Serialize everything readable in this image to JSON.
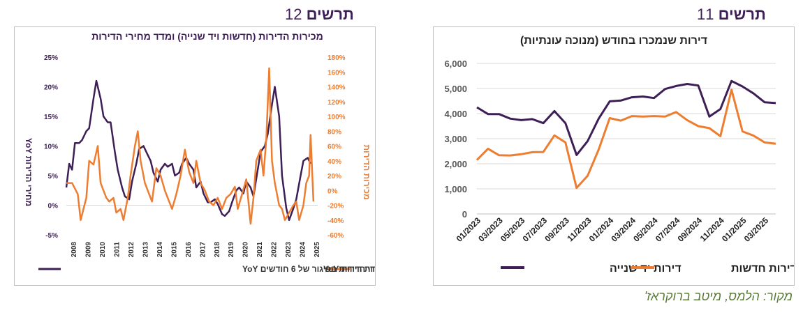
{
  "fig11_heading": {
    "word": "תרשים",
    "number": "11"
  },
  "fig12_heading": {
    "word": "תרשים",
    "number": "12"
  },
  "source": "מקור: הלמס, מיטב ברוקראז'",
  "colors": {
    "purple": "#3d1f56",
    "orange": "#ed7d31",
    "grid": "#d9d9d9",
    "axis_text": "#595959"
  },
  "chart_data": [
    {
      "type": "line",
      "title": "דירות שנמכרו בחודש (מנוכה עונתיות)",
      "x": [
        "01/2023",
        "02/2023",
        "03/2023",
        "04/2023",
        "05/2023",
        "06/2023",
        "07/2023",
        "08/2023",
        "09/2023",
        "10/2023",
        "11/2023",
        "12/2023",
        "01/2024",
        "02/2024",
        "03/2024",
        "04/2024",
        "05/2024",
        "06/2024",
        "07/2024",
        "08/2024",
        "09/2024",
        "10/2024",
        "11/2024",
        "12/2024",
        "01/2025",
        "02/2025",
        "03/2025",
        "04/2025"
      ],
      "x_tick_labels": [
        "01/2023",
        "03/2023",
        "05/2023",
        "07/2023",
        "09/2023",
        "11/2023",
        "01/2024",
        "03/2024",
        "05/2024",
        "07/2024",
        "09/2024",
        "11/2024",
        "01/2025",
        "03/2025"
      ],
      "ylim": [
        0,
        6000
      ],
      "y_ticks": [
        "0",
        "1,000",
        "2,000",
        "3,000",
        "4,000",
        "5,000",
        "6,000"
      ],
      "grid": "horizontal",
      "legend_position": "bottom",
      "series": [
        {
          "name": "דירות יד שנייה",
          "color": "#3d1f56",
          "values": [
            4250,
            3980,
            3980,
            3800,
            3740,
            3780,
            3620,
            4100,
            3620,
            2350,
            2900,
            3800,
            4490,
            4520,
            4650,
            4680,
            4620,
            4980,
            5100,
            5180,
            5120,
            3880,
            4180,
            5300,
            5080,
            4800,
            4450,
            4420
          ]
        },
        {
          "name": "דירות חדשות",
          "color": "#ed7d31",
          "values": [
            2150,
            2600,
            2340,
            2330,
            2380,
            2460,
            2470,
            3130,
            2850,
            1040,
            1520,
            2570,
            3820,
            3720,
            3900,
            3880,
            3900,
            3880,
            4060,
            3740,
            3500,
            3420,
            3100,
            4950,
            3290,
            3120,
            2850,
            2800
          ]
        }
      ]
    },
    {
      "type": "line",
      "title": "מכירות הדירות (חדשות ויד שנייה) ומדד מחירי הדירות",
      "x_tick_labels": [
        "2008",
        "2009",
        "2010",
        "2011",
        "2012",
        "2013",
        "2014",
        "2015",
        "2016",
        "2017",
        "2018",
        "2019",
        "2020",
        "2021",
        "2022",
        "2023",
        "2024",
        "2025"
      ],
      "y_left": {
        "label": "מחירי הדירות YoY",
        "ylim": [
          -5,
          25
        ],
        "ticks": [
          "-5%",
          "0%",
          "5%",
          "10%",
          "15%",
          "20%",
          "25%"
        ]
      },
      "y_right": {
        "label": "מכירות הדירות",
        "ylim": [
          -60,
          180
        ],
        "ticks": [
          "-60%",
          "-40%",
          "-20%",
          "0%",
          "20%",
          "40%",
          "60%",
          "80%",
          "100%",
          "120%",
          "140%",
          "160%",
          "180%"
        ]
      },
      "legend_position": "bottom",
      "series": [
        {
          "name": "מחירי הדירות בפיגור של 6 חודשים YoY",
          "axis": "left",
          "color": "#3d1f56",
          "x": [
            2008.0,
            2008.2,
            2008.4,
            2008.6,
            2008.9,
            2009.1,
            2009.4,
            2009.6,
            2009.9,
            2010.1,
            2010.4,
            2010.6,
            2010.9,
            2011.1,
            2011.4,
            2011.6,
            2011.9,
            2012.1,
            2012.4,
            2012.6,
            2012.9,
            2013.1,
            2013.4,
            2013.6,
            2013.9,
            2014.1,
            2014.4,
            2014.6,
            2014.9,
            2015.1,
            2015.4,
            2015.6,
            2015.9,
            2016.1,
            2016.4,
            2016.6,
            2016.9,
            2017.1,
            2017.4,
            2017.6,
            2017.9,
            2018.1,
            2018.4,
            2018.6,
            2018.9,
            2019.1,
            2019.4,
            2019.6,
            2019.9,
            2020.1,
            2020.4,
            2020.6,
            2020.9,
            2021.1,
            2021.4,
            2021.6,
            2021.9,
            2022.1,
            2022.4,
            2022.6,
            2022.9,
            2023.1,
            2023.4,
            2023.6,
            2023.9,
            2024.1,
            2024.4,
            2024.6,
            2024.9,
            2025.1
          ],
          "values": [
            3,
            7,
            6,
            10.5,
            10.5,
            11,
            12.5,
            13,
            18,
            21,
            18,
            15,
            14,
            14,
            9,
            6,
            3,
            1.5,
            1,
            4,
            7,
            9.5,
            10,
            9,
            7.5,
            5.5,
            4,
            6,
            7,
            6.5,
            7,
            5,
            5.5,
            7,
            8,
            7,
            6,
            3,
            4,
            2,
            0.5,
            0.5,
            1,
            0.2,
            -1.5,
            -1.8,
            -1,
            0.5,
            2.5,
            3,
            2,
            4,
            3,
            1.5,
            6,
            9,
            10,
            12,
            17,
            20,
            15,
            5,
            -0.5,
            -2.5,
            -0.5,
            1,
            5,
            7.5,
            8,
            7
          ]
        },
        {
          "name": "מכירות דירות YoY",
          "axis": "right",
          "color": "#ed7d31",
          "x": [
            2008.0,
            2008.4,
            2008.8,
            2009.0,
            2009.4,
            2009.6,
            2009.9,
            2010.2,
            2010.4,
            2010.6,
            2010.8,
            2011.0,
            2011.3,
            2011.5,
            2011.8,
            2012.0,
            2012.3,
            2012.5,
            2012.8,
            2013.0,
            2013.2,
            2013.5,
            2013.8,
            2014.0,
            2014.3,
            2014.6,
            2014.9,
            2015.1,
            2015.4,
            2015.7,
            2016.0,
            2016.3,
            2016.6,
            2016.9,
            2017.1,
            2017.4,
            2017.7,
            2018.0,
            2018.3,
            2018.6,
            2018.9,
            2019.2,
            2019.5,
            2019.8,
            2020.0,
            2020.3,
            2020.6,
            2020.9,
            2021.1,
            2021.3,
            2021.6,
            2021.8,
            2022.0,
            2022.2,
            2022.4,
            2022.6,
            2022.9,
            2023.1,
            2023.3,
            2023.6,
            2023.9,
            2024.1,
            2024.3,
            2024.6,
            2024.8,
            2025.0,
            2025.1,
            2025.3
          ],
          "values": [
            10,
            10,
            -5,
            -40,
            -10,
            40,
            35,
            60,
            10,
            0,
            -10,
            -15,
            -10,
            -30,
            -25,
            -40,
            -10,
            20,
            60,
            80,
            40,
            10,
            -5,
            -15,
            30,
            20,
            0,
            -10,
            -25,
            -5,
            20,
            55,
            25,
            10,
            40,
            10,
            0,
            -15,
            -20,
            -10,
            -25,
            -10,
            -5,
            5,
            -25,
            -5,
            15,
            -45,
            -10,
            40,
            55,
            20,
            70,
            165,
            40,
            10,
            -20,
            -25,
            -40,
            -30,
            -20,
            -15,
            -40,
            -20,
            10,
            20,
            75,
            -15
          ]
        }
      ]
    }
  ]
}
